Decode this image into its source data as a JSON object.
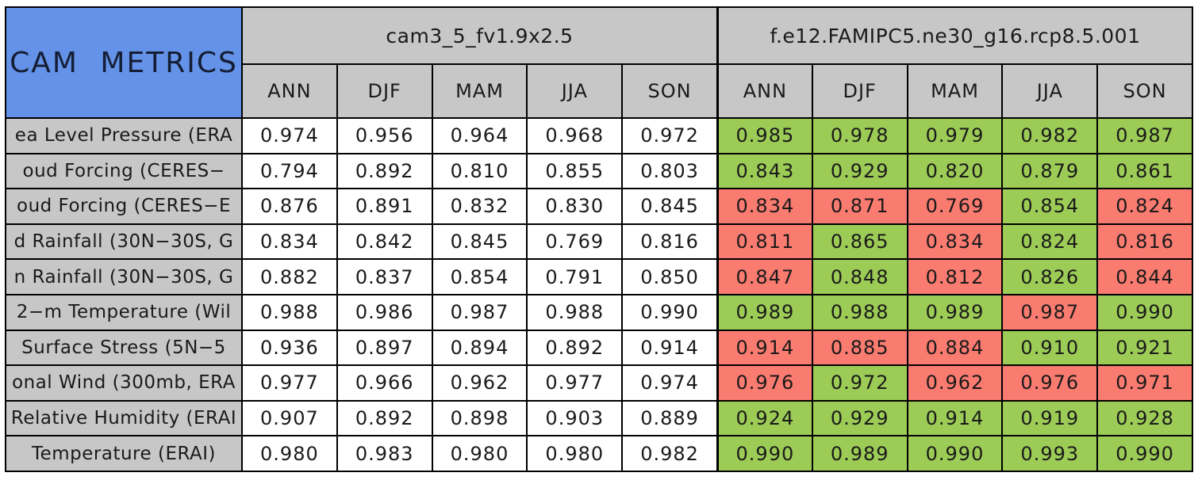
{
  "chart_data": {
    "type": "table",
    "title": "CAM METRICS",
    "column_groups": [
      "cam3_5_fv1.9x2.5",
      "f.e12.FAMIPC5.ne30_g16.rcp8.5.001"
    ],
    "seasons": [
      "ANN",
      "DJF",
      "MAM",
      "JJA",
      "SON"
    ],
    "legend_colors": {
      "title_blue": "#6492E8",
      "header_gray": "#C7C7C7",
      "green_cell": "#9CCB56",
      "red_cell": "#FA7B70",
      "white_cell": "#FFFFFF",
      "grid_black": "#000000"
    },
    "rows": [
      {
        "label": "ea Level Pressure (ERA",
        "group1": {
          "values": [
            "0.974",
            "0.956",
            "0.964",
            "0.968",
            "0.972"
          ],
          "colors": [
            "white",
            "white",
            "white",
            "white",
            "white"
          ]
        },
        "group2": {
          "values": [
            "0.985",
            "0.978",
            "0.979",
            "0.982",
            "0.987"
          ],
          "colors": [
            "green",
            "green",
            "green",
            "green",
            "green"
          ]
        }
      },
      {
        "label": "oud Forcing (CERES−",
        "group1": {
          "values": [
            "0.794",
            "0.892",
            "0.810",
            "0.855",
            "0.803"
          ],
          "colors": [
            "white",
            "white",
            "white",
            "white",
            "white"
          ]
        },
        "group2": {
          "values": [
            "0.843",
            "0.929",
            "0.820",
            "0.879",
            "0.861"
          ],
          "colors": [
            "green",
            "green",
            "green",
            "green",
            "green"
          ]
        }
      },
      {
        "label": "oud Forcing (CERES−E",
        "group1": {
          "values": [
            "0.876",
            "0.891",
            "0.832",
            "0.830",
            "0.845"
          ],
          "colors": [
            "white",
            "white",
            "white",
            "white",
            "white"
          ]
        },
        "group2": {
          "values": [
            "0.834",
            "0.871",
            "0.769",
            "0.854",
            "0.824"
          ],
          "colors": [
            "red",
            "red",
            "red",
            "green",
            "red"
          ]
        }
      },
      {
        "label": "d Rainfall (30N−30S, G",
        "group1": {
          "values": [
            "0.834",
            "0.842",
            "0.845",
            "0.769",
            "0.816"
          ],
          "colors": [
            "white",
            "white",
            "white",
            "white",
            "white"
          ]
        },
        "group2": {
          "values": [
            "0.811",
            "0.865",
            "0.834",
            "0.824",
            "0.816"
          ],
          "colors": [
            "red",
            "green",
            "red",
            "green",
            "red"
          ]
        }
      },
      {
        "label": "n Rainfall (30N−30S, G",
        "group1": {
          "values": [
            "0.882",
            "0.837",
            "0.854",
            "0.791",
            "0.850"
          ],
          "colors": [
            "white",
            "white",
            "white",
            "white",
            "white"
          ]
        },
        "group2": {
          "values": [
            "0.847",
            "0.848",
            "0.812",
            "0.826",
            "0.844"
          ],
          "colors": [
            "red",
            "green",
            "red",
            "green",
            "red"
          ]
        }
      },
      {
        "label": "2−m Temperature (Wil",
        "group1": {
          "values": [
            "0.988",
            "0.986",
            "0.987",
            "0.988",
            "0.990"
          ],
          "colors": [
            "white",
            "white",
            "white",
            "white",
            "white"
          ]
        },
        "group2": {
          "values": [
            "0.989",
            "0.988",
            "0.989",
            "0.987",
            "0.990"
          ],
          "colors": [
            "green",
            "green",
            "green",
            "red",
            "green"
          ]
        }
      },
      {
        "label": "Surface Stress (5N−5",
        "group1": {
          "values": [
            "0.936",
            "0.897",
            "0.894",
            "0.892",
            "0.914"
          ],
          "colors": [
            "white",
            "white",
            "white",
            "white",
            "white"
          ]
        },
        "group2": {
          "values": [
            "0.914",
            "0.885",
            "0.884",
            "0.910",
            "0.921"
          ],
          "colors": [
            "red",
            "red",
            "red",
            "green",
            "green"
          ]
        }
      },
      {
        "label": "onal Wind (300mb, ERA",
        "group1": {
          "values": [
            "0.977",
            "0.966",
            "0.962",
            "0.977",
            "0.974"
          ],
          "colors": [
            "white",
            "white",
            "white",
            "white",
            "white"
          ]
        },
        "group2": {
          "values": [
            "0.976",
            "0.972",
            "0.962",
            "0.976",
            "0.971"
          ],
          "colors": [
            "red",
            "green",
            "red",
            "red",
            "red"
          ]
        }
      },
      {
        "label": "Relative Humidity (ERAI",
        "group1": {
          "values": [
            "0.907",
            "0.892",
            "0.898",
            "0.903",
            "0.889"
          ],
          "colors": [
            "white",
            "white",
            "white",
            "white",
            "white"
          ]
        },
        "group2": {
          "values": [
            "0.924",
            "0.929",
            "0.914",
            "0.919",
            "0.928"
          ],
          "colors": [
            "green",
            "green",
            "green",
            "green",
            "green"
          ]
        }
      },
      {
        "label": "Temperature (ERAI)",
        "group1": {
          "values": [
            "0.980",
            "0.983",
            "0.980",
            "0.980",
            "0.982"
          ],
          "colors": [
            "white",
            "white",
            "white",
            "white",
            "white"
          ]
        },
        "group2": {
          "values": [
            "0.990",
            "0.989",
            "0.990",
            "0.993",
            "0.990"
          ],
          "colors": [
            "green",
            "green",
            "green",
            "green",
            "green"
          ]
        }
      }
    ]
  }
}
